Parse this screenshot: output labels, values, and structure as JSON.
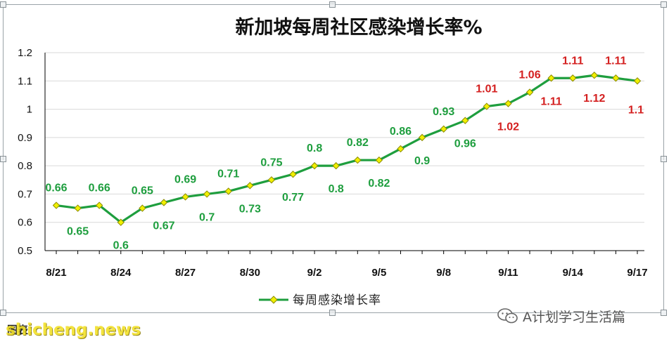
{
  "chart_data": {
    "type": "line",
    "title": "新加坡每周社区感染增长率%",
    "x": [
      "8/21",
      "8/22",
      "8/23",
      "8/24",
      "8/25",
      "8/26",
      "8/27",
      "8/28",
      "8/29",
      "8/30",
      "8/31",
      "9/1",
      "9/2",
      "9/3",
      "9/4",
      "9/5",
      "9/6",
      "9/7",
      "9/8",
      "9/9",
      "9/10",
      "9/11",
      "9/12",
      "9/13",
      "9/14",
      "9/15",
      "9/16",
      "9/17"
    ],
    "x_tick_labels": [
      "8/21",
      "8/24",
      "8/27",
      "8/30",
      "9/2",
      "9/5",
      "9/8",
      "9/11",
      "9/14",
      "9/17"
    ],
    "series": [
      {
        "name": "每周感染增长率",
        "values": [
          0.66,
          0.65,
          0.66,
          0.6,
          0.65,
          0.67,
          0.69,
          0.7,
          0.71,
          0.73,
          0.75,
          0.77,
          0.8,
          0.8,
          0.82,
          0.82,
          0.86,
          0.9,
          0.93,
          0.96,
          1.01,
          1.02,
          1.06,
          1.11,
          1.11,
          1.12,
          1.11,
          1.1
        ],
        "data_labels": [
          "0.66",
          "0.65",
          "0.66",
          "0.6",
          "0.65",
          "0.67",
          "0.69",
          "0.7",
          "0.71",
          "0.73",
          "0.75",
          "0.77",
          "0.8",
          "0.8",
          "0.82",
          "0.82",
          "0.86",
          "0.9",
          "0.93",
          "0.96",
          "1.01",
          "1.02",
          "1.06",
          "1.11",
          "1.11",
          "1.12",
          "1.11",
          "1.1"
        ],
        "label_positions": [
          "above",
          "below",
          "above",
          "below",
          "above",
          "below",
          "above",
          "below",
          "above",
          "below",
          "above",
          "below",
          "above",
          "below",
          "above",
          "below",
          "above",
          "below",
          "above",
          "below",
          "above",
          "below",
          "above",
          "below",
          "above",
          "below",
          "above",
          "last"
        ]
      }
    ],
    "ylim": [
      0.5,
      1.2
    ],
    "y_ticks": [
      "0.5",
      "0.6",
      "0.7",
      "0.8",
      "0.9",
      "1",
      "1.1",
      "1.2"
    ],
    "xlabel": "",
    "ylabel": "",
    "grid": true,
    "legend": "bottom-center",
    "colors": {
      "line": "#1e9e3e",
      "marker_fill": "#f0f000",
      "marker_stroke": "#8a8a00",
      "label_low": "#1e9e3e",
      "label_high": "#d42020",
      "grid": "#d9d9d9",
      "axis": "#000000"
    },
    "label_color_threshold": 1.0
  },
  "watermark": {
    "icon": "wechat-icon",
    "text": "A计划学习生活篇"
  },
  "source": {
    "text": "图表："
  },
  "site_watermark": {
    "text": "shicheng.news"
  }
}
